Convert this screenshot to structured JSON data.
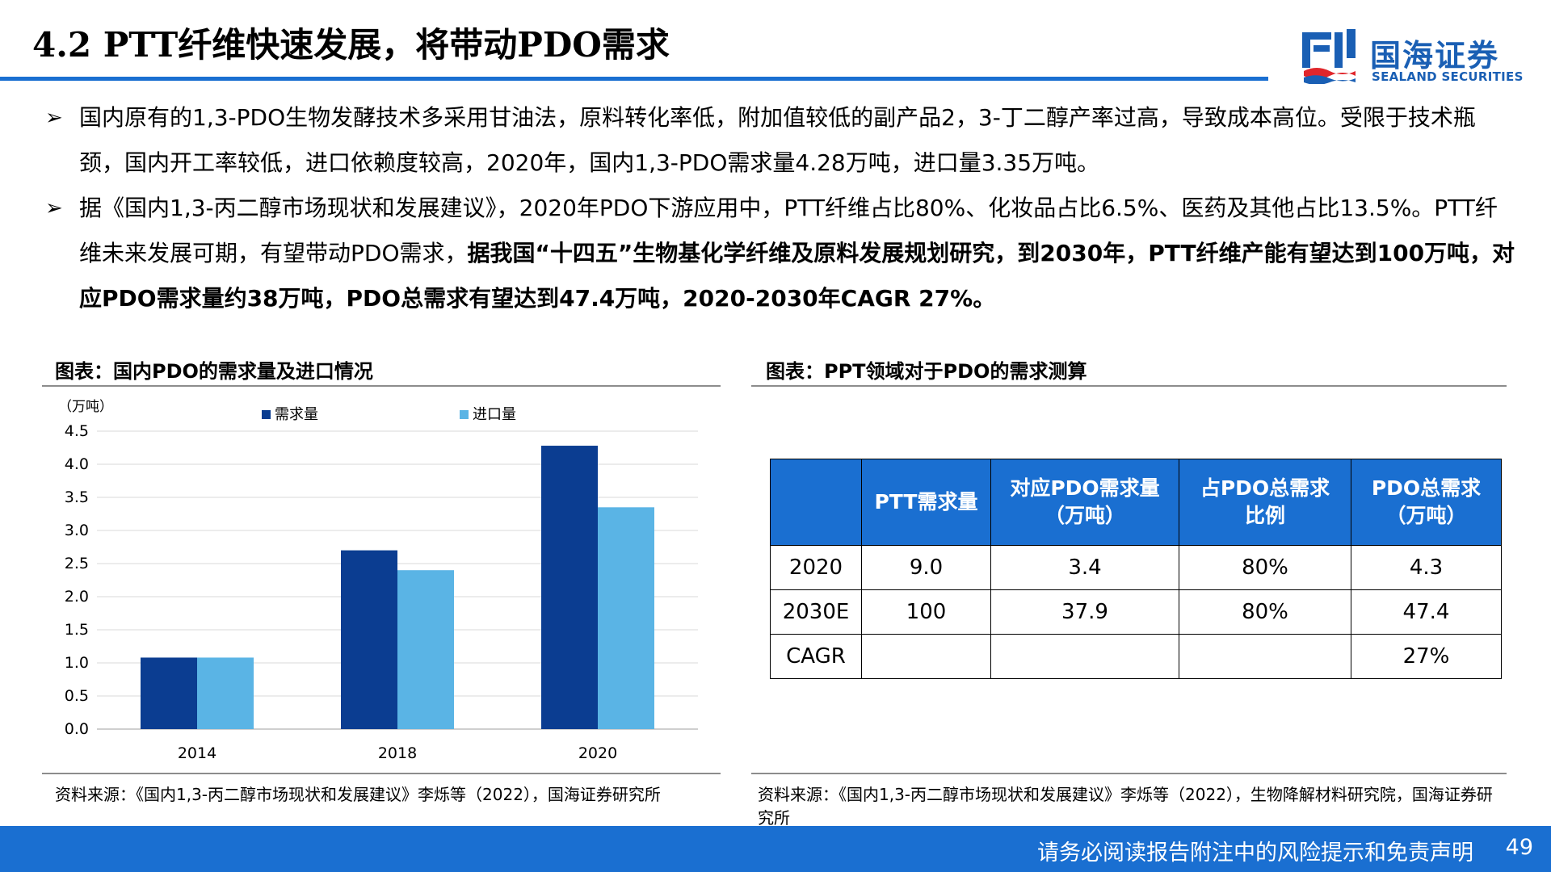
{
  "header": {
    "title": "4.2 PTT纤维快速发展，将带动PDO需求",
    "logo_cn": "国海证券",
    "logo_en": "SEALAND SECURITIES"
  },
  "bullets": [
    {
      "marker": "➢",
      "text": "国内原有的1,3-PDO生物发酵技术多采用甘油法，原料转化率低，附加值较低的副产品2，3-丁二醇产率过高，导致成本高位。受限于技术瓶颈，国内开工率较低，进口依赖度较高，2020年，国内1,3-PDO需求量4.28万吨，进口量3.35万吨。"
    },
    {
      "marker": "➢",
      "text": "据《国内1,3-丙二醇市场现状和发展建议》，2020年PDO下游应用中，PTT纤维占比80%、化妆品占比6.5%、医药及其他占比13.5%。PTT纤维未来发展可期，有望带动PDO需求，",
      "bold_text": "据我国“十四五”生物基化学纤维及原料发展规划研究，到2030年，PTT纤维产能有望达到100万吨，对应PDO需求量约38万吨，PDO总需求有望达到47.4万吨，2020-2030年CAGR 27%。"
    }
  ],
  "figure_left": {
    "title": "图表：国内PDO的需求量及进口情况",
    "source": "资料来源：《国内1,3-丙二醇市场现状和发展建议》李烁等（2022），国海证券研究所"
  },
  "figure_right": {
    "title": "图表：PPT领域对于PDO的需求测算",
    "source": "资料来源：《国内1,3-丙二醇市场现状和发展建议》李烁等（2022），生物降解材料研究院，国海证券研究所"
  },
  "chart_data": {
    "type": "bar",
    "title": "",
    "ylabel": "（万吨）",
    "xlabel": "",
    "categories": [
      "2014",
      "2018",
      "2020"
    ],
    "series": [
      {
        "name": "需求量",
        "values": [
          1.08,
          2.7,
          4.28
        ],
        "color": "#0b3d91"
      },
      {
        "name": "进口量",
        "values": [
          1.08,
          2.4,
          3.35
        ],
        "color": "#5ab4e5"
      }
    ],
    "ylim": [
      0,
      4.5
    ],
    "yticks": [
      "0.0",
      "0.5",
      "1.0",
      "1.5",
      "2.0",
      "2.5",
      "3.0",
      "3.5",
      "4.0",
      "4.5"
    ],
    "grid": true,
    "legend": "top"
  },
  "table": {
    "headers": [
      "",
      "PTT需求量",
      "对应PDO需求量\n（万吨）",
      "占PDO总需求\n比例",
      "PDO总需求\n（万吨）"
    ],
    "rows": [
      [
        "2020",
        "9.0",
        "3.4",
        "80%",
        "4.3"
      ],
      [
        "2030E",
        "100",
        "37.9",
        "80%",
        "47.4"
      ],
      [
        "CAGR",
        "",
        "",
        "",
        "27%"
      ]
    ]
  },
  "footer": {
    "disclaimer": "请务必阅读报告附注中的风险提示和免责声明",
    "page": "49"
  },
  "colors": {
    "accent": "#1a6fd1",
    "dark_bar": "#0b3d91",
    "light_bar": "#5ab4e5"
  }
}
